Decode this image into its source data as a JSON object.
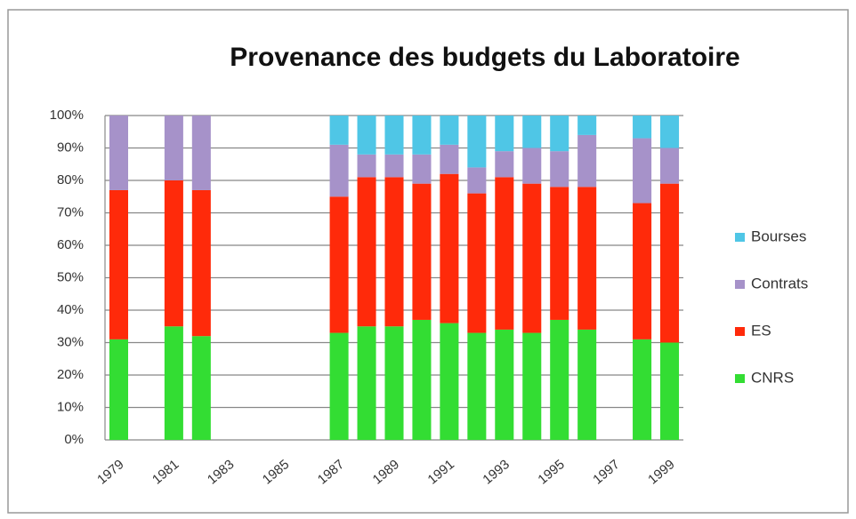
{
  "chart_data": {
    "type": "stacked-bar",
    "title": "Provenance des budgets du Laboratoire",
    "categories": [
      "1979",
      null,
      "1981",
      null,
      "1983",
      null,
      "1985",
      null,
      "1987",
      null,
      "1989",
      null,
      "1991",
      null,
      "1993",
      null,
      "1995",
      null,
      "1997",
      null,
      "1999"
    ],
    "series": [
      {
        "name": "CNRS",
        "color": "#33dd33",
        "values": [
          31,
          null,
          35,
          32,
          null,
          null,
          null,
          null,
          33,
          35,
          35,
          37,
          36,
          33,
          34,
          33,
          37,
          34,
          null,
          31,
          30
        ]
      },
      {
        "name": "ES",
        "color": "#ff2a0a",
        "values": [
          46,
          null,
          45,
          45,
          null,
          null,
          null,
          null,
          42,
          46,
          46,
          42,
          46,
          43,
          47,
          46,
          41,
          44,
          null,
          42,
          49
        ]
      },
      {
        "name": "Contrats",
        "color": "#a692c9",
        "values": [
          23,
          null,
          20,
          23,
          null,
          null,
          null,
          null,
          16,
          7,
          7,
          9,
          9,
          8,
          8,
          11,
          11,
          16,
          null,
          20,
          11
        ]
      },
      {
        "name": "Bourses",
        "color": "#4fc6e6",
        "values": [
          0,
          null,
          0,
          0,
          null,
          null,
          null,
          null,
          9,
          12,
          12,
          12,
          9,
          16,
          11,
          10,
          11,
          6,
          null,
          7,
          10
        ]
      }
    ],
    "ylim": [
      0,
      100
    ],
    "yticks": [
      {
        "value": 0,
        "label": "0%"
      },
      {
        "value": 10,
        "label": "10%"
      },
      {
        "value": 20,
        "label": "20%"
      },
      {
        "value": 30,
        "label": "30%"
      },
      {
        "value": 40,
        "label": "40%"
      },
      {
        "value": 50,
        "label": "50%"
      },
      {
        "value": 60,
        "label": "60%"
      },
      {
        "value": 70,
        "label": "70%"
      },
      {
        "value": 80,
        "label": "80%"
      },
      {
        "value": 90,
        "label": "90%"
      },
      {
        "value": 100,
        "label": "100%"
      }
    ],
    "grid": true,
    "legend": "right"
  }
}
